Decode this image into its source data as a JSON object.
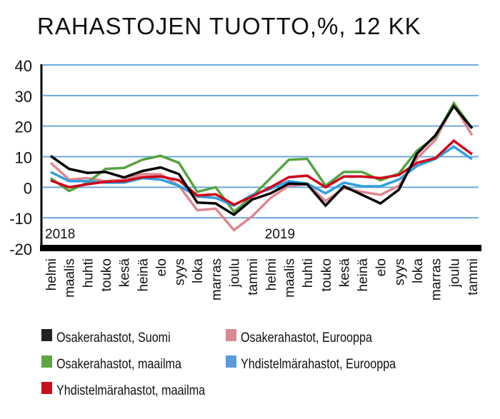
{
  "chart_data": {
    "type": "line",
    "title": "RAHASTOJEN TUOTTO,%, 12 KK",
    "xlabel": "",
    "ylabel": "",
    "ylim": [
      -20,
      40
    ],
    "yticks": [
      40,
      30,
      20,
      10,
      0,
      -10,
      -20
    ],
    "grid": true,
    "legend_placement": "bottom",
    "year_labels": [
      {
        "label": "2018",
        "index": 0
      },
      {
        "label": "2019",
        "index": 12
      }
    ],
    "categories": [
      "helmi",
      "maalis",
      "huhti",
      "touko",
      "kesä",
      "heinä",
      "elo",
      "syys",
      "loka",
      "marras",
      "joulu",
      "tammi",
      "helmi",
      "maalis",
      "huhti",
      "touko",
      "kesä",
      "heinä",
      "elo",
      "syys",
      "loka",
      "marras",
      "joulu",
      "tammi"
    ],
    "series": [
      {
        "name": "Osakerahastot, Eurooppa",
        "color": "#e0868e",
        "values": [
          8,
          2.5,
          3,
          2,
          2.5,
          4.3,
          4.2,
          0.5,
          -7.5,
          -7,
          -14,
          -9.5,
          -3.5,
          0.5,
          1,
          -4.5,
          -0.3,
          -1.5,
          -2.5,
          0.5,
          9.5,
          15.5,
          27,
          17
        ]
      },
      {
        "name": "Osakerahastot, maailma",
        "color": "#55a33f",
        "values": [
          3,
          -1.2,
          1.5,
          6,
          6.3,
          9,
          10.3,
          8,
          -1.5,
          0,
          -8,
          -3,
          3,
          9,
          9.3,
          0.5,
          5,
          5,
          2.3,
          4.5,
          12,
          16.5,
          27.5,
          19.3
        ]
      },
      {
        "name": "Yhdistelmärahastot, Eurooppa",
        "color": "#2e9fe0",
        "values": [
          5,
          2,
          2,
          1.5,
          1.5,
          3,
          2.5,
          0.5,
          -3,
          -3.5,
          -6,
          -2.5,
          -0.5,
          2,
          1.2,
          -2,
          1.5,
          0.3,
          0.3,
          2.5,
          7,
          9.3,
          13.3,
          9.2
        ]
      },
      {
        "name": "Yhdistelmärahastot, maailma",
        "color": "#d0021b",
        "values": [
          2.2,
          0,
          1,
          1.8,
          2,
          3.3,
          3.5,
          2.3,
          -2.7,
          -2.3,
          -5.7,
          -3,
          0,
          3.3,
          3.8,
          0,
          3.5,
          3.5,
          3,
          4,
          8,
          9.5,
          15.2,
          10.8
        ]
      },
      {
        "name": "Osakerahastot, Suomi",
        "color": "#000000",
        "values": [
          10.2,
          6,
          4.7,
          5,
          3.2,
          5.3,
          6.5,
          4.3,
          -5,
          -5.3,
          -9,
          -4,
          -2,
          1.2,
          1,
          -6,
          0.3,
          -2.5,
          -5.3,
          -0.8,
          11,
          17,
          26.5,
          19.3
        ]
      }
    ],
    "legend": [
      {
        "label": "Osakerahastot, Suomi",
        "color": "#222222"
      },
      {
        "label": "Osakerahastot, Eurooppa",
        "color": "#db8990"
      },
      {
        "label": "Osakerahastot, maailma",
        "color": "#5ea544"
      },
      {
        "label": "Yhdistelmärahastot, Eurooppa",
        "color": "#5b9bd8"
      },
      {
        "label": "Yhdistelmärahastot, maailma",
        "color": "#c8101d"
      }
    ],
    "gridline_color": "#6fa6dc"
  }
}
